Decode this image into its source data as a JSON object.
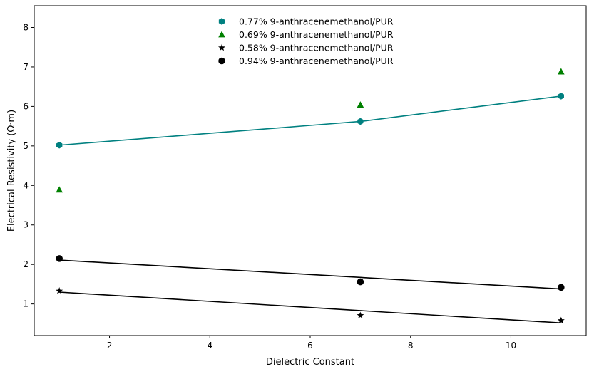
{
  "chart_data": {
    "type": "scatter",
    "xlabel": "Dielectric Constant",
    "ylabel": "Electrical Resistivity (Ω·m)",
    "xlim": [
      0.5,
      11.5
    ],
    "ylim": [
      0.2,
      8.55
    ],
    "xticks": [
      2,
      4,
      6,
      8,
      10
    ],
    "yticks": [
      1,
      2,
      3,
      4,
      5,
      6,
      7,
      8
    ],
    "grid": false,
    "legend_position": "top-center",
    "series": [
      {
        "name": "0.77% 9-anthracenemethanol/PUR",
        "marker": "hexagon",
        "color": "#008080",
        "x": [
          1,
          7,
          11
        ],
        "y": [
          5.02,
          5.62,
          6.26
        ]
      },
      {
        "name": "0.69% 9-anthracenemethanol/PUR",
        "marker": "triangle",
        "color": "#008000",
        "x": [
          1,
          7,
          11
        ],
        "y": [
          3.89,
          6.04,
          6.88
        ]
      },
      {
        "name": "0.58% 9-anthracenemethanol/PUR",
        "marker": "star",
        "color": "#000000",
        "x": [
          1,
          7,
          11
        ],
        "y": [
          1.33,
          0.71,
          0.58
        ]
      },
      {
        "name": "0.94% 9-anthracenemethanol/PUR",
        "marker": "circle",
        "color": "#000000",
        "x": [
          1,
          7,
          11
        ],
        "y": [
          2.15,
          1.56,
          1.42
        ]
      }
    ],
    "fit_lines": [
      {
        "color": "#008080",
        "x": [
          1,
          2,
          3,
          4,
          5,
          6,
          7,
          8,
          9,
          10,
          11
        ],
        "y": [
          5.02,
          5.12,
          5.22,
          5.32,
          5.42,
          5.52,
          5.62,
          5.78,
          5.94,
          6.1,
          6.26
        ]
      },
      {
        "color": "#000000",
        "x": [
          1,
          11
        ],
        "y": [
          2.11,
          1.38
        ]
      },
      {
        "color": "#000000",
        "x": [
          1,
          11
        ],
        "y": [
          1.3,
          0.52
        ]
      }
    ]
  }
}
